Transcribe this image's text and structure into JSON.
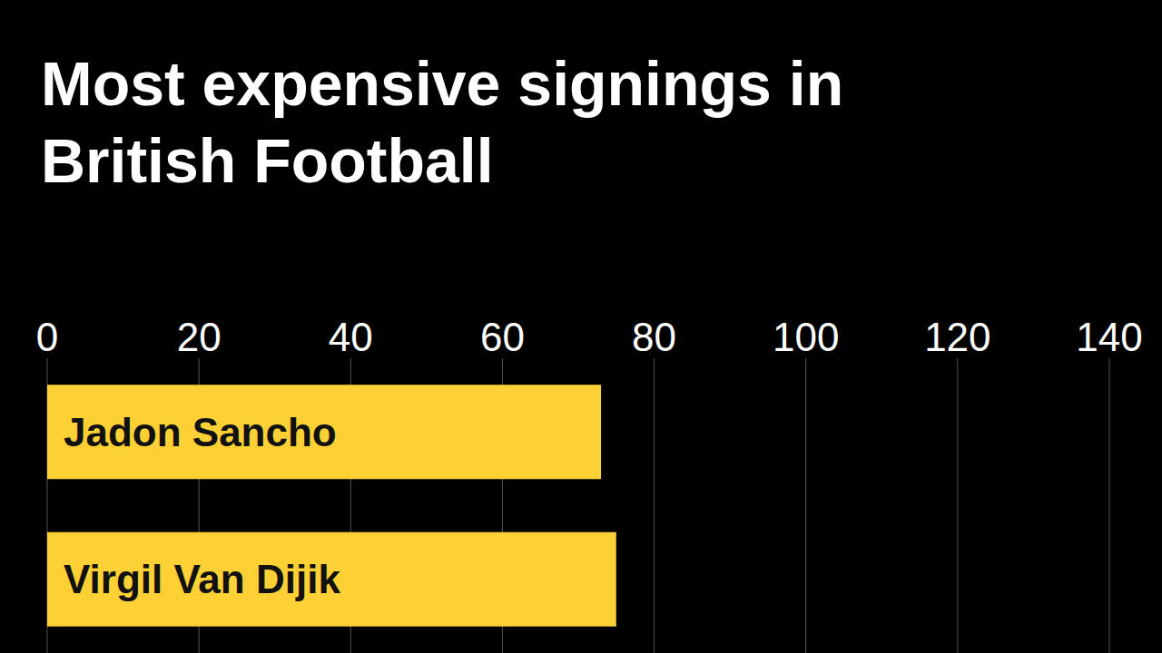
{
  "chart_data": {
    "type": "bar",
    "title": "Most expensive signings in British Football",
    "categories": [
      "Jadon Sancho",
      "Virgil Van Dijik"
    ],
    "values": [
      73,
      75
    ],
    "color": "#fdd135",
    "orientation": "horizontal",
    "xlim": [
      0,
      140
    ],
    "xticks": [
      0,
      20,
      40,
      60,
      80,
      100,
      120,
      140
    ],
    "grid": true
  }
}
